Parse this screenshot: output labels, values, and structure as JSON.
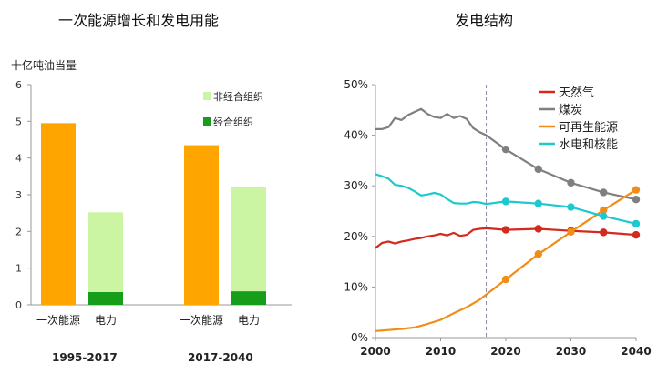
{
  "left_chart": {
    "title": "一次能源增长和发电用能",
    "ylabel": "十亿吨油当量",
    "legend": [
      {
        "label": "非经合组织",
        "color": "#ccf5a3"
      },
      {
        "label": "经合组织",
        "color": "#169e1b"
      }
    ]
  },
  "right_chart": {
    "title": "发电结构",
    "legend": [
      {
        "label": "天然气",
        "color": "#d22a1e"
      },
      {
        "label": "煤炭",
        "color": "#7f7f7f"
      },
      {
        "label": "可再生能源",
        "color": "#f28c15"
      },
      {
        "label": "水电和核能",
        "color": "#1dc9cf"
      }
    ]
  },
  "chart_data": [
    {
      "type": "bar",
      "title": "一次能源增长和发电用能",
      "ylabel": "十亿吨油当量",
      "ylim": [
        0,
        6
      ],
      "yticks": [
        "0",
        "1",
        "2",
        "3",
        "4",
        "5",
        "6"
      ],
      "groups": [
        {
          "period": "1995-2017",
          "categories": [
            "一次能源",
            "电力"
          ],
          "bars": [
            {
              "category": "一次能源",
              "value": 4.95,
              "color": "#ffa500"
            },
            {
              "category": "电力",
              "stack": [
                {
                  "series": "经合组织",
                  "value": 0.35
                },
                {
                  "series": "非经合组织",
                  "value": 2.17
                }
              ]
            }
          ]
        },
        {
          "period": "2017-2040",
          "categories": [
            "一次能源",
            "电力"
          ],
          "bars": [
            {
              "category": "一次能源",
              "value": 4.35,
              "color": "#ffa500"
            },
            {
              "category": "电力",
              "stack": [
                {
                  "series": "经合组织",
                  "value": 0.37
                },
                {
                  "series": "非经合组织",
                  "value": 2.85
                }
              ]
            }
          ]
        }
      ]
    },
    {
      "type": "line",
      "title": "发电结构",
      "xlim": [
        2000,
        2040
      ],
      "ylim": [
        0,
        50
      ],
      "xticks": [
        "2000",
        "2010",
        "2020",
        "2030",
        "2040"
      ],
      "yticks": [
        "0%",
        "10%",
        "20%",
        "30%",
        "40%",
        "50%"
      ],
      "reference_line_x": 2017,
      "series": [
        {
          "name": "天然气",
          "color": "#d22a1e",
          "x": [
            2000,
            2001,
            2002,
            2003,
            2004,
            2005,
            2006,
            2007,
            2008,
            2009,
            2010,
            2011,
            2012,
            2013,
            2014,
            2015,
            2016,
            2017,
            2020,
            2025,
            2030,
            2035,
            2040
          ],
          "y": [
            17.7,
            18.7,
            19.0,
            18.6,
            19.0,
            19.2,
            19.5,
            19.7,
            20.0,
            20.2,
            20.5,
            20.2,
            20.7,
            20.1,
            20.3,
            21.3,
            21.5,
            21.6,
            21.3,
            21.5,
            21.1,
            20.8,
            20.3
          ],
          "markers_at": [
            2020,
            2025,
            2030,
            2035,
            2040
          ]
        },
        {
          "name": "煤炭",
          "color": "#7f7f7f",
          "x": [
            2000,
            2001,
            2002,
            2003,
            2004,
            2005,
            2006,
            2007,
            2008,
            2009,
            2010,
            2011,
            2012,
            2013,
            2014,
            2015,
            2016,
            2017,
            2020,
            2025,
            2030,
            2035,
            2040
          ],
          "y": [
            41.2,
            41.2,
            41.6,
            43.4,
            43.0,
            44.0,
            44.6,
            45.2,
            44.2,
            43.6,
            43.4,
            44.2,
            43.4,
            43.8,
            43.2,
            41.4,
            40.6,
            40.0,
            37.2,
            33.3,
            30.6,
            28.7,
            27.3
          ],
          "markers_at": [
            2020,
            2025,
            2030,
            2035,
            2040
          ]
        },
        {
          "name": "可再生能源",
          "color": "#f28c15",
          "x": [
            2000,
            2002,
            2004,
            2006,
            2008,
            2010,
            2012,
            2014,
            2016,
            2017,
            2020,
            2025,
            2030,
            2035,
            2040
          ],
          "y": [
            1.3,
            1.5,
            1.7,
            2.0,
            2.7,
            3.5,
            4.8,
            6.0,
            7.5,
            8.5,
            11.5,
            16.5,
            20.9,
            25.2,
            29.2
          ],
          "markers_at": [
            2020,
            2025,
            2030,
            2035,
            2040
          ]
        },
        {
          "name": "水电和核能",
          "color": "#1dc9cf",
          "x": [
            2000,
            2001,
            2002,
            2003,
            2004,
            2005,
            2006,
            2007,
            2008,
            2009,
            2010,
            2011,
            2012,
            2013,
            2014,
            2015,
            2016,
            2017,
            2020,
            2025,
            2030,
            2035,
            2040
          ],
          "y": [
            32.3,
            31.9,
            31.4,
            30.2,
            30.0,
            29.6,
            28.9,
            28.1,
            28.3,
            28.6,
            28.3,
            27.4,
            26.6,
            26.5,
            26.5,
            26.8,
            26.7,
            26.4,
            26.9,
            26.5,
            25.8,
            24.0,
            22.5
          ],
          "markers_at": [
            2020,
            2025,
            2030,
            2035,
            2040
          ]
        }
      ]
    }
  ]
}
